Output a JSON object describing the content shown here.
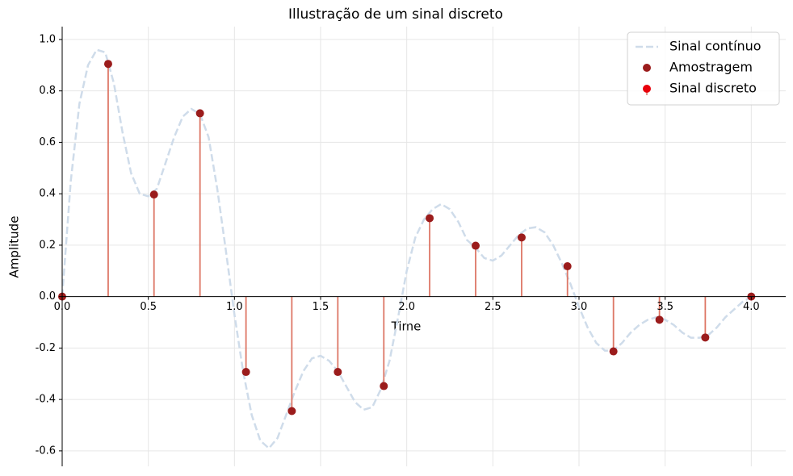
{
  "chart_data": {
    "type": "stem",
    "title": "Illustração de um sinal discreto",
    "x_label": "Time",
    "y_label": "Amplitude",
    "xlim": [
      0,
      4.2
    ],
    "ylim": [
      -0.66,
      1.05
    ],
    "xticks": [
      {
        "value": 0,
        "label": "0.0"
      },
      0.5,
      {
        "value": 1,
        "label": "1.0"
      },
      1.5,
      {
        "value": 2,
        "label": "2.0"
      },
      2.5,
      {
        "value": 3,
        "label": "3.0"
      },
      3.5,
      {
        "value": 4,
        "label": "4.0"
      }
    ],
    "yticks": [
      -0.6,
      -0.4,
      -0.2,
      {
        "value": 0,
        "label": "0.0"
      },
      0.2,
      0.4,
      0.6,
      0.8,
      {
        "value": 1,
        "label": "1.0"
      }
    ],
    "grid": true,
    "legend": "upper right",
    "series": [
      {
        "name": "Sinal contínuo",
        "kind": "line",
        "color": "#cfdcea",
        "dashed": true,
        "x": [
          0,
          0.05,
          0.1,
          0.15,
          0.2,
          0.25,
          0.3,
          0.35,
          0.4,
          0.45,
          0.5,
          0.55,
          0.6,
          0.65,
          0.7,
          0.75,
          0.8,
          0.85,
          0.9,
          0.95,
          1,
          1.05,
          1.1,
          1.15,
          1.2,
          1.25,
          1.3,
          1.35,
          1.4,
          1.45,
          1.5,
          1.55,
          1.6,
          1.65,
          1.7,
          1.75,
          1.8,
          1.85,
          1.9,
          1.95,
          2,
          2.05,
          2.1,
          2.15,
          2.2,
          2.25,
          2.3,
          2.35,
          2.4,
          2.45,
          2.5,
          2.55,
          2.6,
          2.65,
          2.7,
          2.75,
          2.8,
          2.85,
          2.9,
          2.95,
          3,
          3.05,
          3.1,
          3.15,
          3.2,
          3.25,
          3.3,
          3.35,
          3.4,
          3.45,
          3.5,
          3.55,
          3.6,
          3.65,
          3.7,
          3.75,
          3.8,
          3.85,
          3.9,
          3.95,
          4
        ],
        "values": [
          0,
          0.45,
          0.75,
          0.9,
          0.96,
          0.95,
          0.83,
          0.64,
          0.48,
          0.4,
          0.39,
          0.42,
          0.52,
          0.62,
          0.7,
          0.73,
          0.71,
          0.62,
          0.42,
          0.18,
          -0.07,
          -0.29,
          -0.46,
          -0.56,
          -0.59,
          -0.55,
          -0.46,
          -0.37,
          -0.29,
          -0.24,
          -0.23,
          -0.25,
          -0.29,
          -0.35,
          -0.41,
          -0.44,
          -0.43,
          -0.36,
          -0.25,
          -0.08,
          0.1,
          0.23,
          0.3,
          0.34,
          0.36,
          0.34,
          0.29,
          0.22,
          0.19,
          0.15,
          0.14,
          0.16,
          0.2,
          0.24,
          0.265,
          0.27,
          0.25,
          0.2,
          0.13,
          0.05,
          -0.04,
          -0.12,
          -0.18,
          -0.21,
          -0.21,
          -0.18,
          -0.14,
          -0.11,
          -0.09,
          -0.08,
          -0.09,
          -0.11,
          -0.14,
          -0.16,
          -0.16,
          -0.15,
          -0.12,
          -0.08,
          -0.05,
          -0.02,
          0
        ]
      },
      {
        "name": "Amostragem",
        "kind": "scatter",
        "color": "#9b1c1c",
        "x": [
          0,
          0.267,
          0.533,
          0.8,
          1.067,
          1.333,
          1.6,
          1.867,
          2.133,
          2.4,
          2.667,
          2.933,
          3.2,
          3.467,
          3.733,
          4
        ],
        "values": [
          0,
          0.905,
          0.397,
          0.713,
          -0.293,
          -0.445,
          -0.293,
          -0.348,
          0.305,
          0.198,
          0.23,
          0.118,
          -0.213,
          -0.09,
          -0.159,
          0
        ]
      },
      {
        "name": "Sinal discreto",
        "kind": "stem",
        "color": "#e8000b",
        "stem_color": "#dd7766",
        "x": [
          0,
          0.267,
          0.533,
          0.8,
          1.067,
          1.333,
          1.6,
          1.867,
          2.133,
          2.4,
          2.667,
          2.933,
          3.2,
          3.467,
          3.733,
          4
        ],
        "values": [
          0,
          0.905,
          0.397,
          0.713,
          -0.293,
          -0.445,
          -0.293,
          -0.348,
          0.305,
          0.198,
          0.23,
          0.118,
          -0.213,
          -0.09,
          -0.159,
          0
        ]
      }
    ]
  }
}
